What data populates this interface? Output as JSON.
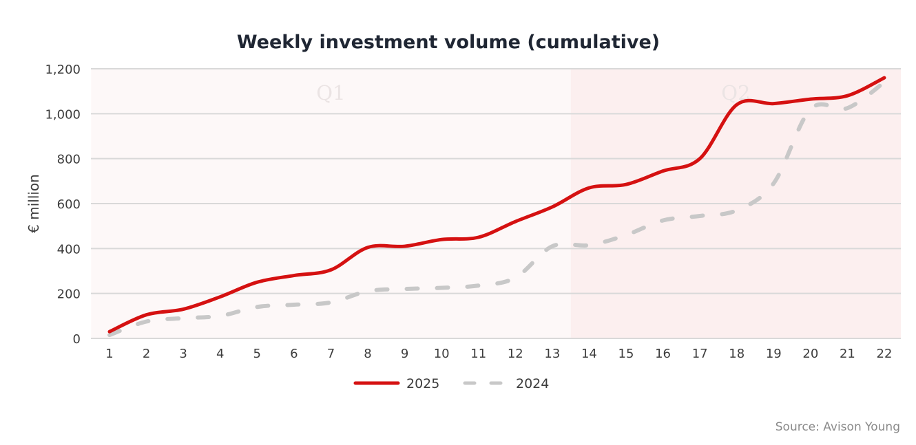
{
  "chart_data": {
    "type": "line",
    "title": "Weekly investment volume (cumulative)",
    "xlabel": "",
    "ylabel": "€ million",
    "x": [
      1,
      2,
      3,
      4,
      5,
      6,
      7,
      8,
      9,
      10,
      11,
      12,
      13,
      14,
      15,
      16,
      17,
      18,
      19,
      20,
      21,
      22
    ],
    "x_tick_labels": [
      "1",
      "2",
      "3",
      "4",
      "5",
      "6",
      "7",
      "8",
      "9",
      "10",
      "11",
      "12",
      "13",
      "14",
      "15",
      "16",
      "17",
      "18",
      "19",
      "20",
      "21",
      "22"
    ],
    "ylim": [
      0,
      1200
    ],
    "y_ticks": [
      0,
      200,
      400,
      600,
      800,
      1000,
      1200
    ],
    "y_tick_labels": [
      "0",
      "200",
      "400",
      "600",
      "800",
      "1,000",
      "1,200"
    ],
    "grid": true,
    "bands": [
      {
        "label": "Q1",
        "from_week": 0.5,
        "to_week": 13.5,
        "color": "#fdf8f8"
      },
      {
        "label": "Q2",
        "from_week": 13.5,
        "to_week": 22.5,
        "color": "#fcefef"
      }
    ],
    "series": [
      {
        "name": "2025",
        "style": "solid",
        "color": "#d51111",
        "values": [
          30,
          105,
          130,
          185,
          250,
          280,
          305,
          405,
          410,
          440,
          450,
          520,
          585,
          670,
          685,
          745,
          800,
          1040,
          1045,
          1065,
          1080,
          1160
        ]
      },
      {
        "name": "2024",
        "style": "dashed",
        "color": "#c8c8c8",
        "values": [
          15,
          75,
          90,
          100,
          140,
          150,
          160,
          210,
          220,
          225,
          235,
          270,
          410,
          415,
          460,
          525,
          545,
          570,
          690,
          1020,
          1025,
          1140
        ]
      }
    ],
    "legend": {
      "placement": "bottom-center",
      "entries": [
        "2025",
        "2024"
      ]
    },
    "source": "Source: Avison Young"
  }
}
